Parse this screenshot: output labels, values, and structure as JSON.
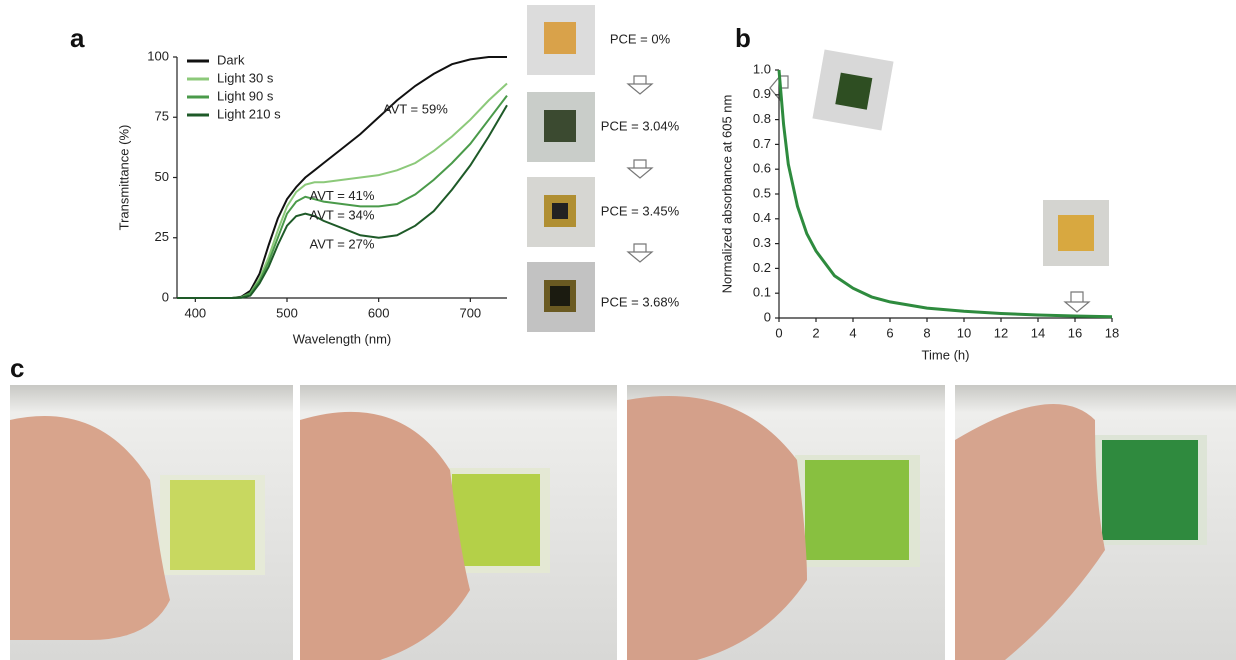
{
  "figure": {
    "panel_labels": [
      "a",
      "b",
      "c"
    ],
    "pce_labels": [
      {
        "text": "PCE = 0%",
        "color": "#111111"
      },
      {
        "text": "PCE = 3.04%",
        "color": "#8cc97a"
      },
      {
        "text": "PCE = 3.45%",
        "color": "#4a9a4a"
      },
      {
        "text": "PCE = 3.68%",
        "color": "#2f6e35"
      }
    ]
  },
  "chart_data": [
    {
      "type": "line",
      "xlabel": "Wavelength (nm)",
      "ylabel": "Transmittance (%)",
      "x": [
        380,
        400,
        420,
        440,
        450,
        460,
        470,
        480,
        490,
        500,
        510,
        520,
        530,
        540,
        560,
        580,
        600,
        620,
        640,
        660,
        680,
        700,
        720,
        740
      ],
      "series": [
        {
          "name": "Dark",
          "color": "#111111",
          "values": [
            0,
            0,
            0,
            0,
            0.5,
            3,
            10,
            22,
            33,
            41,
            46,
            50,
            53,
            56,
            62,
            68,
            75,
            82,
            88,
            93,
            97,
            99,
            100,
            100
          ]
        },
        {
          "name": "Light 30 s",
          "color": "#8cc97a",
          "values": [
            0,
            0,
            0,
            0,
            0.3,
            2,
            8,
            17,
            28,
            38,
            44,
            47,
            48,
            48,
            49,
            50,
            51,
            53,
            56,
            61,
            67,
            74,
            82,
            89
          ]
        },
        {
          "name": "Light 90 s",
          "color": "#4a9a4a",
          "values": [
            0,
            0,
            0,
            0,
            0.2,
            2,
            7,
            15,
            25,
            35,
            40,
            42,
            41,
            40,
            39,
            38,
            38,
            39,
            43,
            49,
            56,
            64,
            74,
            84
          ]
        },
        {
          "name": "Light 210 s",
          "color": "#1e5a28",
          "values": [
            0,
            0,
            0,
            0,
            0.1,
            1,
            6,
            13,
            22,
            30,
            34,
            35,
            34,
            32,
            29,
            26,
            25,
            26,
            30,
            36,
            45,
            55,
            67,
            80
          ]
        }
      ],
      "xlim": [
        380,
        740
      ],
      "xticks": [
        400,
        500,
        600,
        700
      ],
      "ylim": [
        0,
        100
      ],
      "yticks": [
        0,
        25,
        50,
        75,
        100
      ],
      "legend": "upper left",
      "annotations": [
        {
          "text": "AVT = 59%",
          "color": "#111111"
        },
        {
          "text": "AVT = 41%",
          "color": "#8cc97a"
        },
        {
          "text": "AVT = 34%",
          "color": "#4a9a4a"
        },
        {
          "text": "AVT = 27%",
          "color": "#1e5a28"
        }
      ]
    },
    {
      "type": "line",
      "xlabel": "Time (h)",
      "ylabel": "Normalized absorbance at 605 nm",
      "x": [
        0,
        0.25,
        0.5,
        1,
        1.5,
        2,
        3,
        4,
        5,
        6,
        8,
        10,
        12,
        14,
        16,
        18
      ],
      "values": [
        1.0,
        0.78,
        0.62,
        0.45,
        0.34,
        0.27,
        0.17,
        0.12,
        0.085,
        0.065,
        0.04,
        0.027,
        0.018,
        0.012,
        0.008,
        0.005
      ],
      "color": "#2e8b3e",
      "xlim": [
        0,
        18
      ],
      "xticks": [
        0,
        2,
        4,
        6,
        8,
        10,
        12,
        14,
        16,
        18
      ],
      "ylim": [
        0,
        1
      ],
      "yticks": [
        0,
        0.1,
        0.2,
        0.3,
        0.4,
        0.5,
        0.6,
        0.7,
        0.8,
        0.9,
        {
          "value": 1,
          "label": "1.0"
        }
      ]
    }
  ]
}
